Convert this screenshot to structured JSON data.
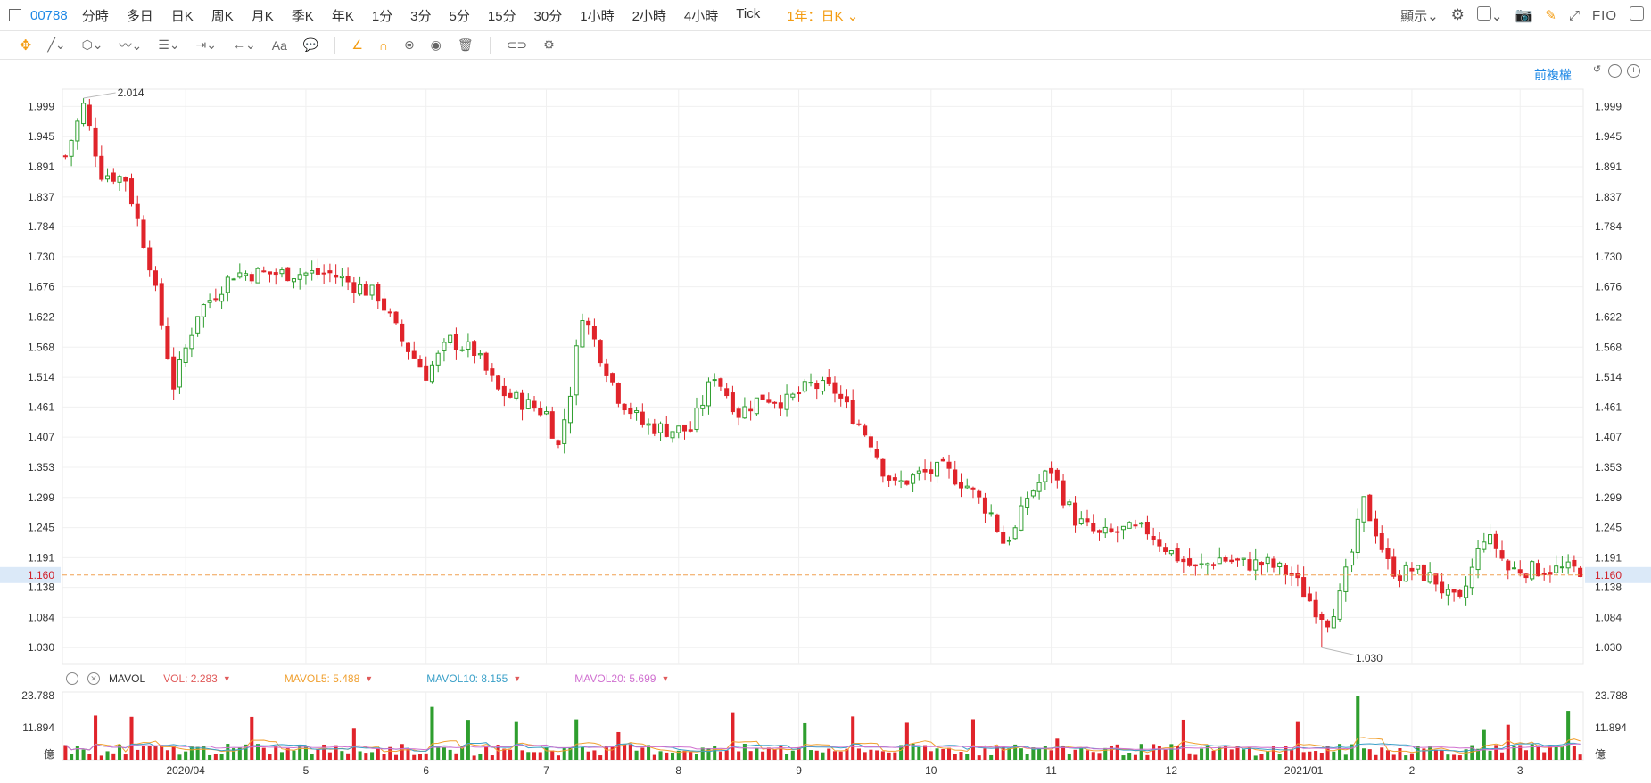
{
  "header": {
    "code": "00788",
    "timeframes": [
      "分時",
      "多日",
      "日K",
      "周K",
      "月K",
      "季K",
      "年K",
      "1分",
      "3分",
      "5分",
      "15分",
      "30分",
      "1小時",
      "2小時",
      "4小時",
      "Tick"
    ],
    "range_label": "1年：日K",
    "display_label": "顯示",
    "fio_label": "FIO"
  },
  "toolbar": {
    "text_tool": "Aa"
  },
  "chart_controls": {
    "adjust_label": "前複權"
  },
  "colors": {
    "up": "#2e9e2e",
    "down": "#e0242b",
    "grid": "#f0f0f0",
    "price_line": "#f0a050",
    "vol_label": "#e05a5a",
    "ma5": "#f0a030",
    "ma10": "#3aa0c8",
    "ma20": "#d070d0"
  },
  "chart_data": {
    "type": "candlestick",
    "y_ticks": [
      "1.999",
      "1.945",
      "1.891",
      "1.837",
      "1.784",
      "1.730",
      "1.676",
      "1.622",
      "1.568",
      "1.514",
      "1.461",
      "1.407",
      "1.353",
      "1.299",
      "1.245",
      "1.191",
      "1.138",
      "1.084",
      "1.030"
    ],
    "ylim": [
      1.0,
      2.03
    ],
    "x_ticks": [
      "2020/04",
      "5",
      "6",
      "7",
      "8",
      "9",
      "10",
      "11",
      "12",
      "2021/01",
      "2",
      "3"
    ],
    "x_tick_index": [
      20,
      40,
      60,
      80,
      102,
      122,
      144,
      164,
      184,
      206,
      224,
      242
    ],
    "current_price": "1.160",
    "current_value": 1.16,
    "high_label": "2.014",
    "high_value": 2.014,
    "high_index": 3,
    "low_label": "1.030",
    "low_value": 1.03,
    "low_index": 209,
    "candle_count": 253,
    "path": [
      [
        0,
        1.91
      ],
      [
        3,
        2.0
      ],
      [
        6,
        1.88
      ],
      [
        10,
        1.87
      ],
      [
        14,
        1.72
      ],
      [
        18,
        1.5
      ],
      [
        22,
        1.63
      ],
      [
        28,
        1.7
      ],
      [
        36,
        1.7
      ],
      [
        44,
        1.7
      ],
      [
        48,
        1.68
      ],
      [
        52,
        1.66
      ],
      [
        56,
        1.58
      ],
      [
        60,
        1.52
      ],
      [
        64,
        1.58
      ],
      [
        68,
        1.56
      ],
      [
        72,
        1.49
      ],
      [
        80,
        1.45
      ],
      [
        82,
        1.39
      ],
      [
        84,
        1.49
      ],
      [
        86,
        1.63
      ],
      [
        88,
        1.58
      ],
      [
        92,
        1.48
      ],
      [
        96,
        1.43
      ],
      [
        100,
        1.42
      ],
      [
        104,
        1.42
      ],
      [
        108,
        1.52
      ],
      [
        112,
        1.45
      ],
      [
        116,
        1.48
      ],
      [
        120,
        1.47
      ],
      [
        124,
        1.5
      ],
      [
        128,
        1.49
      ],
      [
        130,
        1.46
      ],
      [
        134,
        1.4
      ],
      [
        136,
        1.35
      ],
      [
        138,
        1.32
      ],
      [
        142,
        1.34
      ],
      [
        146,
        1.35
      ],
      [
        150,
        1.32
      ],
      [
        154,
        1.27
      ],
      [
        156,
        1.22
      ],
      [
        158,
        1.24
      ],
      [
        160,
        1.3
      ],
      [
        164,
        1.35
      ],
      [
        166,
        1.3
      ],
      [
        168,
        1.26
      ],
      [
        172,
        1.23
      ],
      [
        176,
        1.24
      ],
      [
        180,
        1.24
      ],
      [
        184,
        1.2
      ],
      [
        188,
        1.17
      ],
      [
        192,
        1.19
      ],
      [
        196,
        1.18
      ],
      [
        200,
        1.18
      ],
      [
        204,
        1.16
      ],
      [
        208,
        1.1
      ],
      [
        210,
        1.08
      ],
      [
        212,
        1.12
      ],
      [
        214,
        1.2
      ],
      [
        216,
        1.29
      ],
      [
        218,
        1.24
      ],
      [
        220,
        1.18
      ],
      [
        222,
        1.16
      ],
      [
        224,
        1.17
      ],
      [
        228,
        1.15
      ],
      [
        230,
        1.12
      ],
      [
        232,
        1.11
      ],
      [
        234,
        1.17
      ],
      [
        236,
        1.23
      ],
      [
        238,
        1.21
      ],
      [
        240,
        1.17
      ],
      [
        242,
        1.17
      ]
    ],
    "volume": {
      "y_ticks": [
        "23.788",
        "11.894",
        "億"
      ],
      "ylim": [
        0,
        23.788
      ],
      "legend": {
        "title": "MAVOL",
        "vol": "VOL: 2.283",
        "ma5": "MAVOL5: 5.488",
        "ma10": "MAVOL10: 8.155",
        "ma20": "MAVOL20: 5.699"
      }
    }
  }
}
